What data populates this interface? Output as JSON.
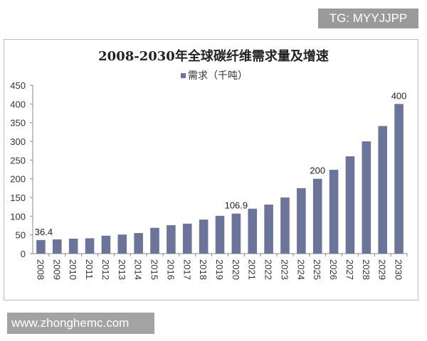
{
  "watermark_top": "TG: MYYJJPP",
  "watermark_bottom": "www.zhonghemc.com",
  "chart_data": {
    "type": "bar",
    "title": "2008-2030年全球碳纤维需求量及增速",
    "legend": {
      "placement": "top",
      "entries": [
        "需求（千吨）"
      ]
    },
    "series": [
      {
        "name": "需求（千吨）",
        "color": "#6b7499",
        "values": [
          36.4,
          38,
          40,
          41,
          48,
          51,
          55,
          69,
          76,
          80,
          91,
          101,
          106.9,
          120,
          131,
          150,
          175,
          200,
          224,
          260,
          300,
          341,
          400
        ]
      }
    ],
    "categories": [
      "2008",
      "2009",
      "2010",
      "2011",
      "2012",
      "2013",
      "2014",
      "2015",
      "2016",
      "2017",
      "2018",
      "2019",
      "2020",
      "2021",
      "2022",
      "2023",
      "2024",
      "2025",
      "2026",
      "2027",
      "2028",
      "2029",
      "2030"
    ],
    "data_labels": {
      "2008": "36.4",
      "2020": "106.9",
      "2025": "200",
      "2030": "400"
    },
    "yticks": [
      0,
      50,
      100,
      150,
      200,
      250,
      300,
      350,
      400,
      450
    ],
    "ylim": [
      0,
      450
    ],
    "grid": false,
    "xlabel": "",
    "ylabel": ""
  }
}
